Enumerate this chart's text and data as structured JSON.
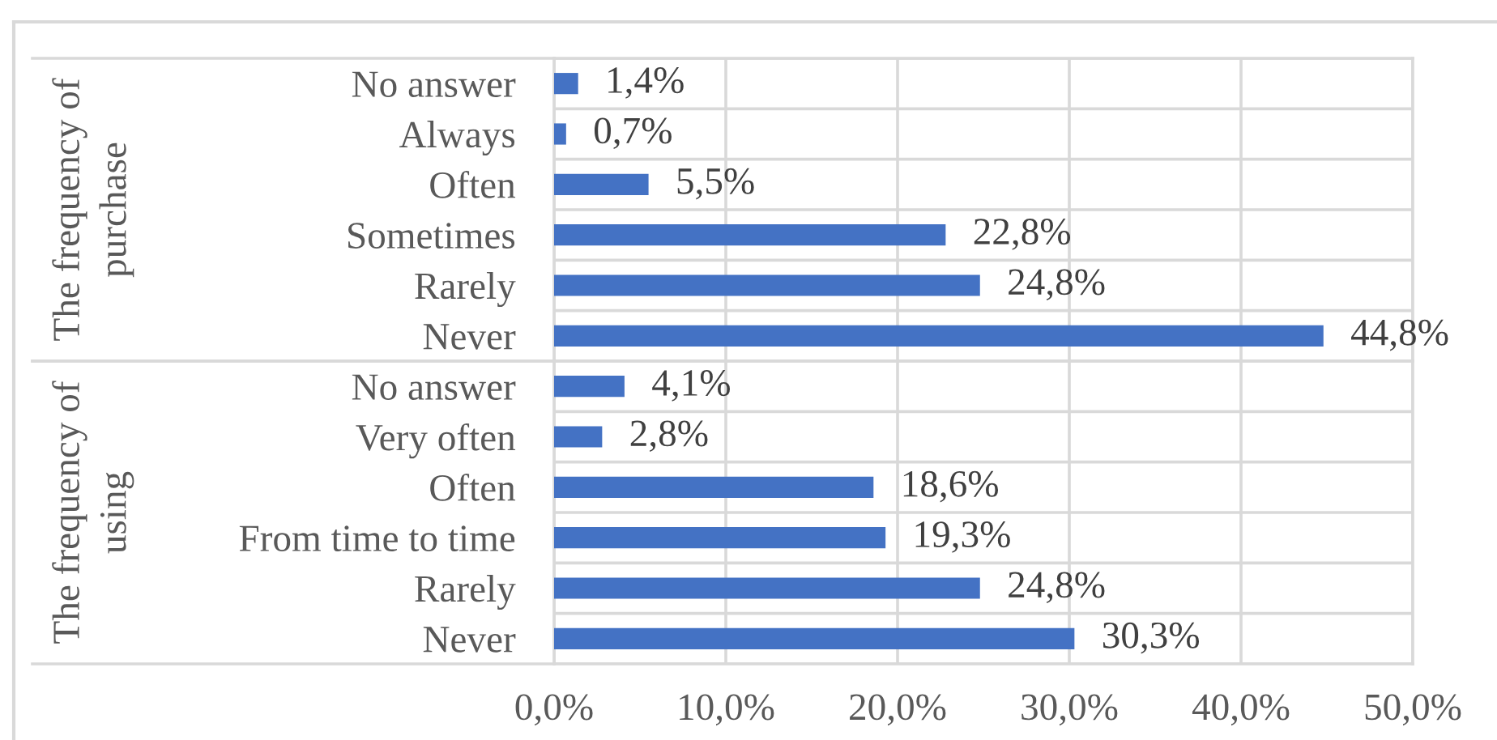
{
  "chart_data": [
    {
      "type": "bar",
      "orientation": "horizontal",
      "ylabel": "The frequency of\npurchase",
      "categories": [
        "No answer",
        "Always",
        "Often",
        "Sometimes",
        "Rarely",
        "Never"
      ],
      "values": [
        1.4,
        0.7,
        5.5,
        22.8,
        24.8,
        44.8
      ],
      "value_labels": [
        "1,4%",
        "0,7%",
        "5,5%",
        "22,8%",
        "24,8%",
        "44,8%"
      ],
      "color": "#4472c4",
      "xlim": [
        0,
        50
      ],
      "xticks": [
        {
          "value": 0,
          "label": null
        },
        {
          "value": 10,
          "label": null
        },
        {
          "value": 20,
          "label": null
        },
        {
          "value": 30,
          "label": null
        },
        {
          "value": 40,
          "label": null
        },
        {
          "value": 50,
          "label": null
        }
      ],
      "grid": true,
      "tick_labels": "y"
    },
    {
      "type": "bar",
      "orientation": "horizontal",
      "ylabel": "The frequency of\nusing",
      "categories": [
        "No answer",
        "Very often",
        "Often",
        "From time to time",
        "Rarely",
        "Never"
      ],
      "values": [
        4.1,
        2.8,
        18.6,
        19.3,
        24.8,
        30.3
      ],
      "value_labels": [
        "4,1%",
        "2,8%",
        "18,6%",
        "19,3%",
        "24,8%",
        "30,3%"
      ],
      "color": "#4472c4",
      "xlim": [
        0,
        50
      ],
      "xticks": [
        {
          "value": 0,
          "label": "0,0%"
        },
        {
          "value": 10,
          "label": "10,0%"
        },
        {
          "value": 20,
          "label": "20,0%"
        },
        {
          "value": 30,
          "label": "30,0%"
        },
        {
          "value": 40,
          "label": "40,0%"
        },
        {
          "value": 50,
          "label": "50,0%"
        }
      ],
      "grid": true
    }
  ]
}
